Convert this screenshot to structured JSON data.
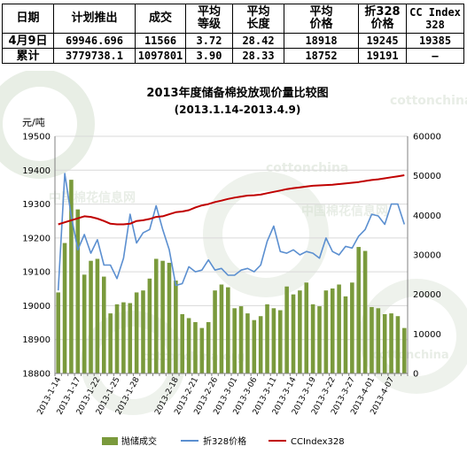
{
  "table": {
    "headers": [
      [
        "日期"
      ],
      [
        "计划推出"
      ],
      [
        "成交"
      ],
      [
        "平均",
        "等级"
      ],
      [
        "平均",
        "长度"
      ],
      [
        "平均",
        "价格"
      ],
      [
        "折328",
        "价格"
      ],
      [
        "CC Index",
        "328"
      ]
    ],
    "rows": [
      [
        "4月9日",
        "69946.696",
        "11566",
        "3.72",
        "28.42",
        "18918",
        "19245",
        "19385"
      ],
      [
        "累计",
        "3779738.1",
        "1097801",
        "3.90",
        "28.33",
        "18752",
        "19191",
        "–"
      ]
    ]
  },
  "watermarks": [
    "cottonchina",
    "中国棉花信息网",
    "cottonchina",
    "中国棉花信息网",
    "cottonchina.org",
    "cottonchina"
  ],
  "chart_data": {
    "type": "bar+line",
    "title": "2013年度储备棉投放现价量比较图",
    "subtitle": "(2013.1.14-2013.4.9)",
    "yunit": "元/吨",
    "ylim_left": [
      18800,
      19500
    ],
    "yticks_left": [
      18800,
      18900,
      19000,
      19100,
      19200,
      19300,
      19400,
      19500
    ],
    "ylim_right": [
      0,
      60000
    ],
    "yticks_right": [
      0,
      10000,
      20000,
      30000,
      40000,
      50000,
      60000
    ],
    "categories": [
      "2013-1-14",
      "2013-1-15",
      "2013-1-16",
      "2013-1-17",
      "2013-1-18",
      "2013-1-21",
      "2013-1-22",
      "2013-1-23",
      "2013-1-24",
      "2013-1-25",
      "2013-1-28",
      "2013-1-29",
      "2013-1-30",
      "2013-1-31",
      "2013-2-1",
      "2013-2-4",
      "2013-2-5",
      "2013-2-6",
      "2013-2-18",
      "2013-2-19",
      "2013-2-20",
      "2013-2-21",
      "2013-2-22",
      "2013-2-25",
      "2013-2-26",
      "2013-2-27",
      "2013-2-28",
      "2013-3-1",
      "2013-3-4",
      "2013-3-5",
      "2013-3-6",
      "2013-3-7",
      "2013-3-8",
      "2013-3-11",
      "2013-3-12",
      "2013-3-13",
      "2013-3-14",
      "2013-3-15",
      "2013-3-18",
      "2013-3-19",
      "2013-3-20",
      "2013-3-21",
      "2013-3-22",
      "2013-3-25",
      "2013-3-26",
      "2013-3-27",
      "2013-3-28",
      "2013-3-29",
      "2013-4-1",
      "2013-4-2",
      "2013-4-3",
      "2013-4-7",
      "2013-4-8",
      "2013-4-9"
    ],
    "xtick_labels": [
      "2013-1-14",
      "2013-1-17",
      "2013-1-22",
      "2013-1-25",
      "2013-1-28",
      "2013-2-18",
      "2013-2-21",
      "2013-2-26",
      "2013-3-01",
      "2013-3-06",
      "2013-3-11",
      "2013-3-14",
      "2013-3-19",
      "2013-3-22",
      "2013-3-27",
      "2013-4-01",
      "2013-4-07"
    ],
    "xtick_index": [
      0,
      3,
      6,
      9,
      12,
      18,
      21,
      24,
      27,
      30,
      33,
      36,
      39,
      42,
      45,
      48,
      51
    ],
    "series": [
      {
        "name": "抛储成交",
        "kind": "bar",
        "axis": "right",
        "color": "#7a9a3c",
        "values": [
          20500,
          33000,
          49000,
          41500,
          25000,
          28500,
          29000,
          24500,
          15200,
          17500,
          18000,
          17800,
          20500,
          21000,
          24000,
          29000,
          28500,
          28000,
          23500,
          15000,
          14000,
          13000,
          11500,
          13000,
          21000,
          22500,
          21800,
          16500,
          17000,
          15200,
          13500,
          14500,
          17500,
          16500,
          16000,
          22000,
          20000,
          21000,
          23000,
          17500,
          17000,
          21000,
          21500,
          22500,
          19500,
          23000,
          32000,
          31000,
          16800,
          16500,
          15000,
          15200,
          14500,
          11500
        ]
      },
      {
        "name": "折328价格",
        "kind": "line",
        "axis": "left",
        "color": "#5b8fd0",
        "values": [
          19045,
          19390,
          19265,
          19165,
          19210,
          19155,
          19195,
          19120,
          19120,
          19080,
          19140,
          19270,
          19185,
          19215,
          19225,
          19295,
          19225,
          19165,
          19060,
          19065,
          19115,
          19100,
          19105,
          19135,
          19105,
          19110,
          19090,
          19090,
          19105,
          19110,
          19100,
          19120,
          19190,
          19235,
          19160,
          19155,
          19165,
          19150,
          19160,
          19155,
          19140,
          19200,
          19160,
          19150,
          19175,
          19170,
          19205,
          19225,
          19270,
          19265,
          19240,
          19300,
          19300,
          19240
        ]
      },
      {
        "name": "CCIndex328",
        "kind": "line",
        "axis": "left",
        "color": "#c00000",
        "values": [
          19240,
          19246,
          19252,
          19258,
          19264,
          19262,
          19257,
          19250,
          19242,
          19240,
          19240,
          19242,
          19250,
          19252,
          19256,
          19262,
          19264,
          19270,
          19276,
          19278,
          19282,
          19290,
          19296,
          19300,
          19306,
          19310,
          19315,
          19319,
          19322,
          19325,
          19326,
          19328,
          19332,
          19336,
          19340,
          19344,
          19347,
          19349,
          19352,
          19354,
          19355,
          19356,
          19357,
          19359,
          19361,
          19363,
          19365,
          19368,
          19371,
          19373,
          19376,
          19379,
          19382,
          19385
        ]
      }
    ],
    "legend_position": "bottom"
  }
}
